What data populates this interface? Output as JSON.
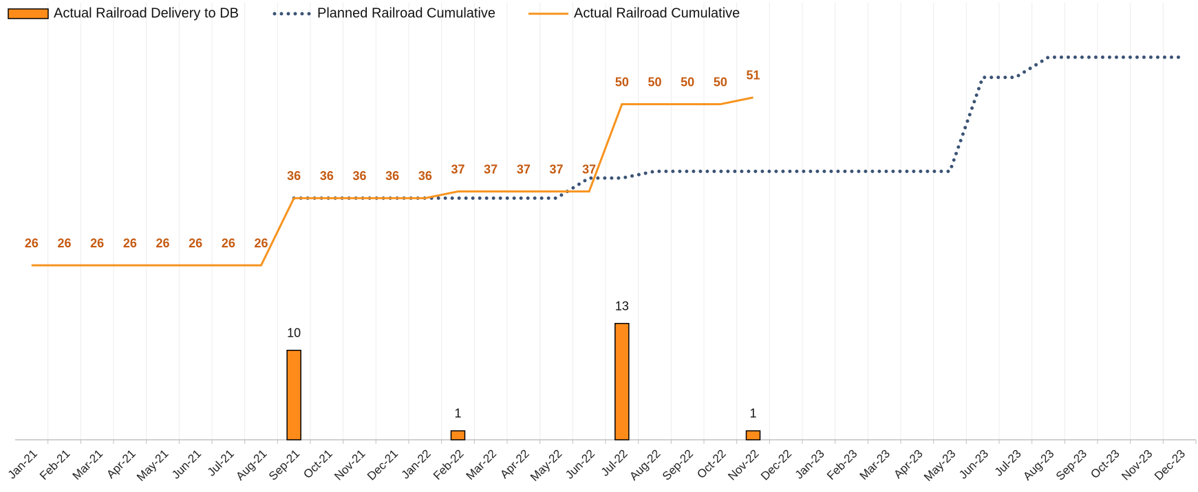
{
  "chart_data": {
    "type": "combo",
    "categories": [
      "Jan-21",
      "Feb-21",
      "Mar-21",
      "Apr-21",
      "May-21",
      "Jun-21",
      "Jul-21",
      "Aug-21",
      "Sep-21",
      "Oct-21",
      "Nov-21",
      "Dec-21",
      "Jan-22",
      "Feb-22",
      "Mar-22",
      "Apr-22",
      "May-22",
      "Jun-22",
      "Jul-22",
      "Aug-22",
      "Sep-22",
      "Oct-22",
      "Nov-22",
      "Dec-22",
      "Jan-23",
      "Feb-23",
      "Mar-23",
      "Apr-23",
      "May-23",
      "Jun-23",
      "Jul-23",
      "Aug-23",
      "Sep-23",
      "Oct-23",
      "Nov-23",
      "Dec-23"
    ],
    "ylim": [
      0,
      45
    ],
    "y2lim": [
      0,
      60
    ],
    "grid": true,
    "legend": "top-left",
    "series": [
      {
        "name": "Actual Railroad Delivery to DB",
        "type": "bar",
        "color": "#ff8c1a",
        "values": [
          null,
          null,
          null,
          null,
          null,
          null,
          null,
          null,
          10,
          null,
          null,
          null,
          null,
          1,
          null,
          null,
          null,
          null,
          13,
          null,
          null,
          null,
          1,
          null,
          null,
          null,
          null,
          null,
          null,
          null,
          null,
          null,
          null,
          null,
          null,
          null
        ]
      },
      {
        "name": "Planned Railroad Cumulative",
        "type": "line",
        "style": "dotted",
        "color": "#3b5375",
        "axis": "y2",
        "values": [
          null,
          null,
          null,
          null,
          null,
          null,
          null,
          null,
          36,
          36,
          36,
          36,
          36,
          36,
          36,
          36,
          36,
          39,
          39,
          40,
          40,
          40,
          40,
          40,
          40,
          40,
          40,
          40,
          40,
          54,
          54,
          57,
          57,
          57,
          57,
          57
        ]
      },
      {
        "name": "Actual Railroad Cumulative",
        "type": "line",
        "style": "solid",
        "color": "#f7931e",
        "axis": "y2",
        "label_color": "#c55a11",
        "values": [
          26,
          26,
          26,
          26,
          26,
          26,
          26,
          26,
          36,
          36,
          36,
          36,
          36,
          37,
          37,
          37,
          37,
          37,
          50,
          50,
          50,
          50,
          51,
          null,
          null,
          null,
          null,
          null,
          null,
          null,
          null,
          null,
          null,
          null,
          null,
          null
        ]
      }
    ]
  }
}
